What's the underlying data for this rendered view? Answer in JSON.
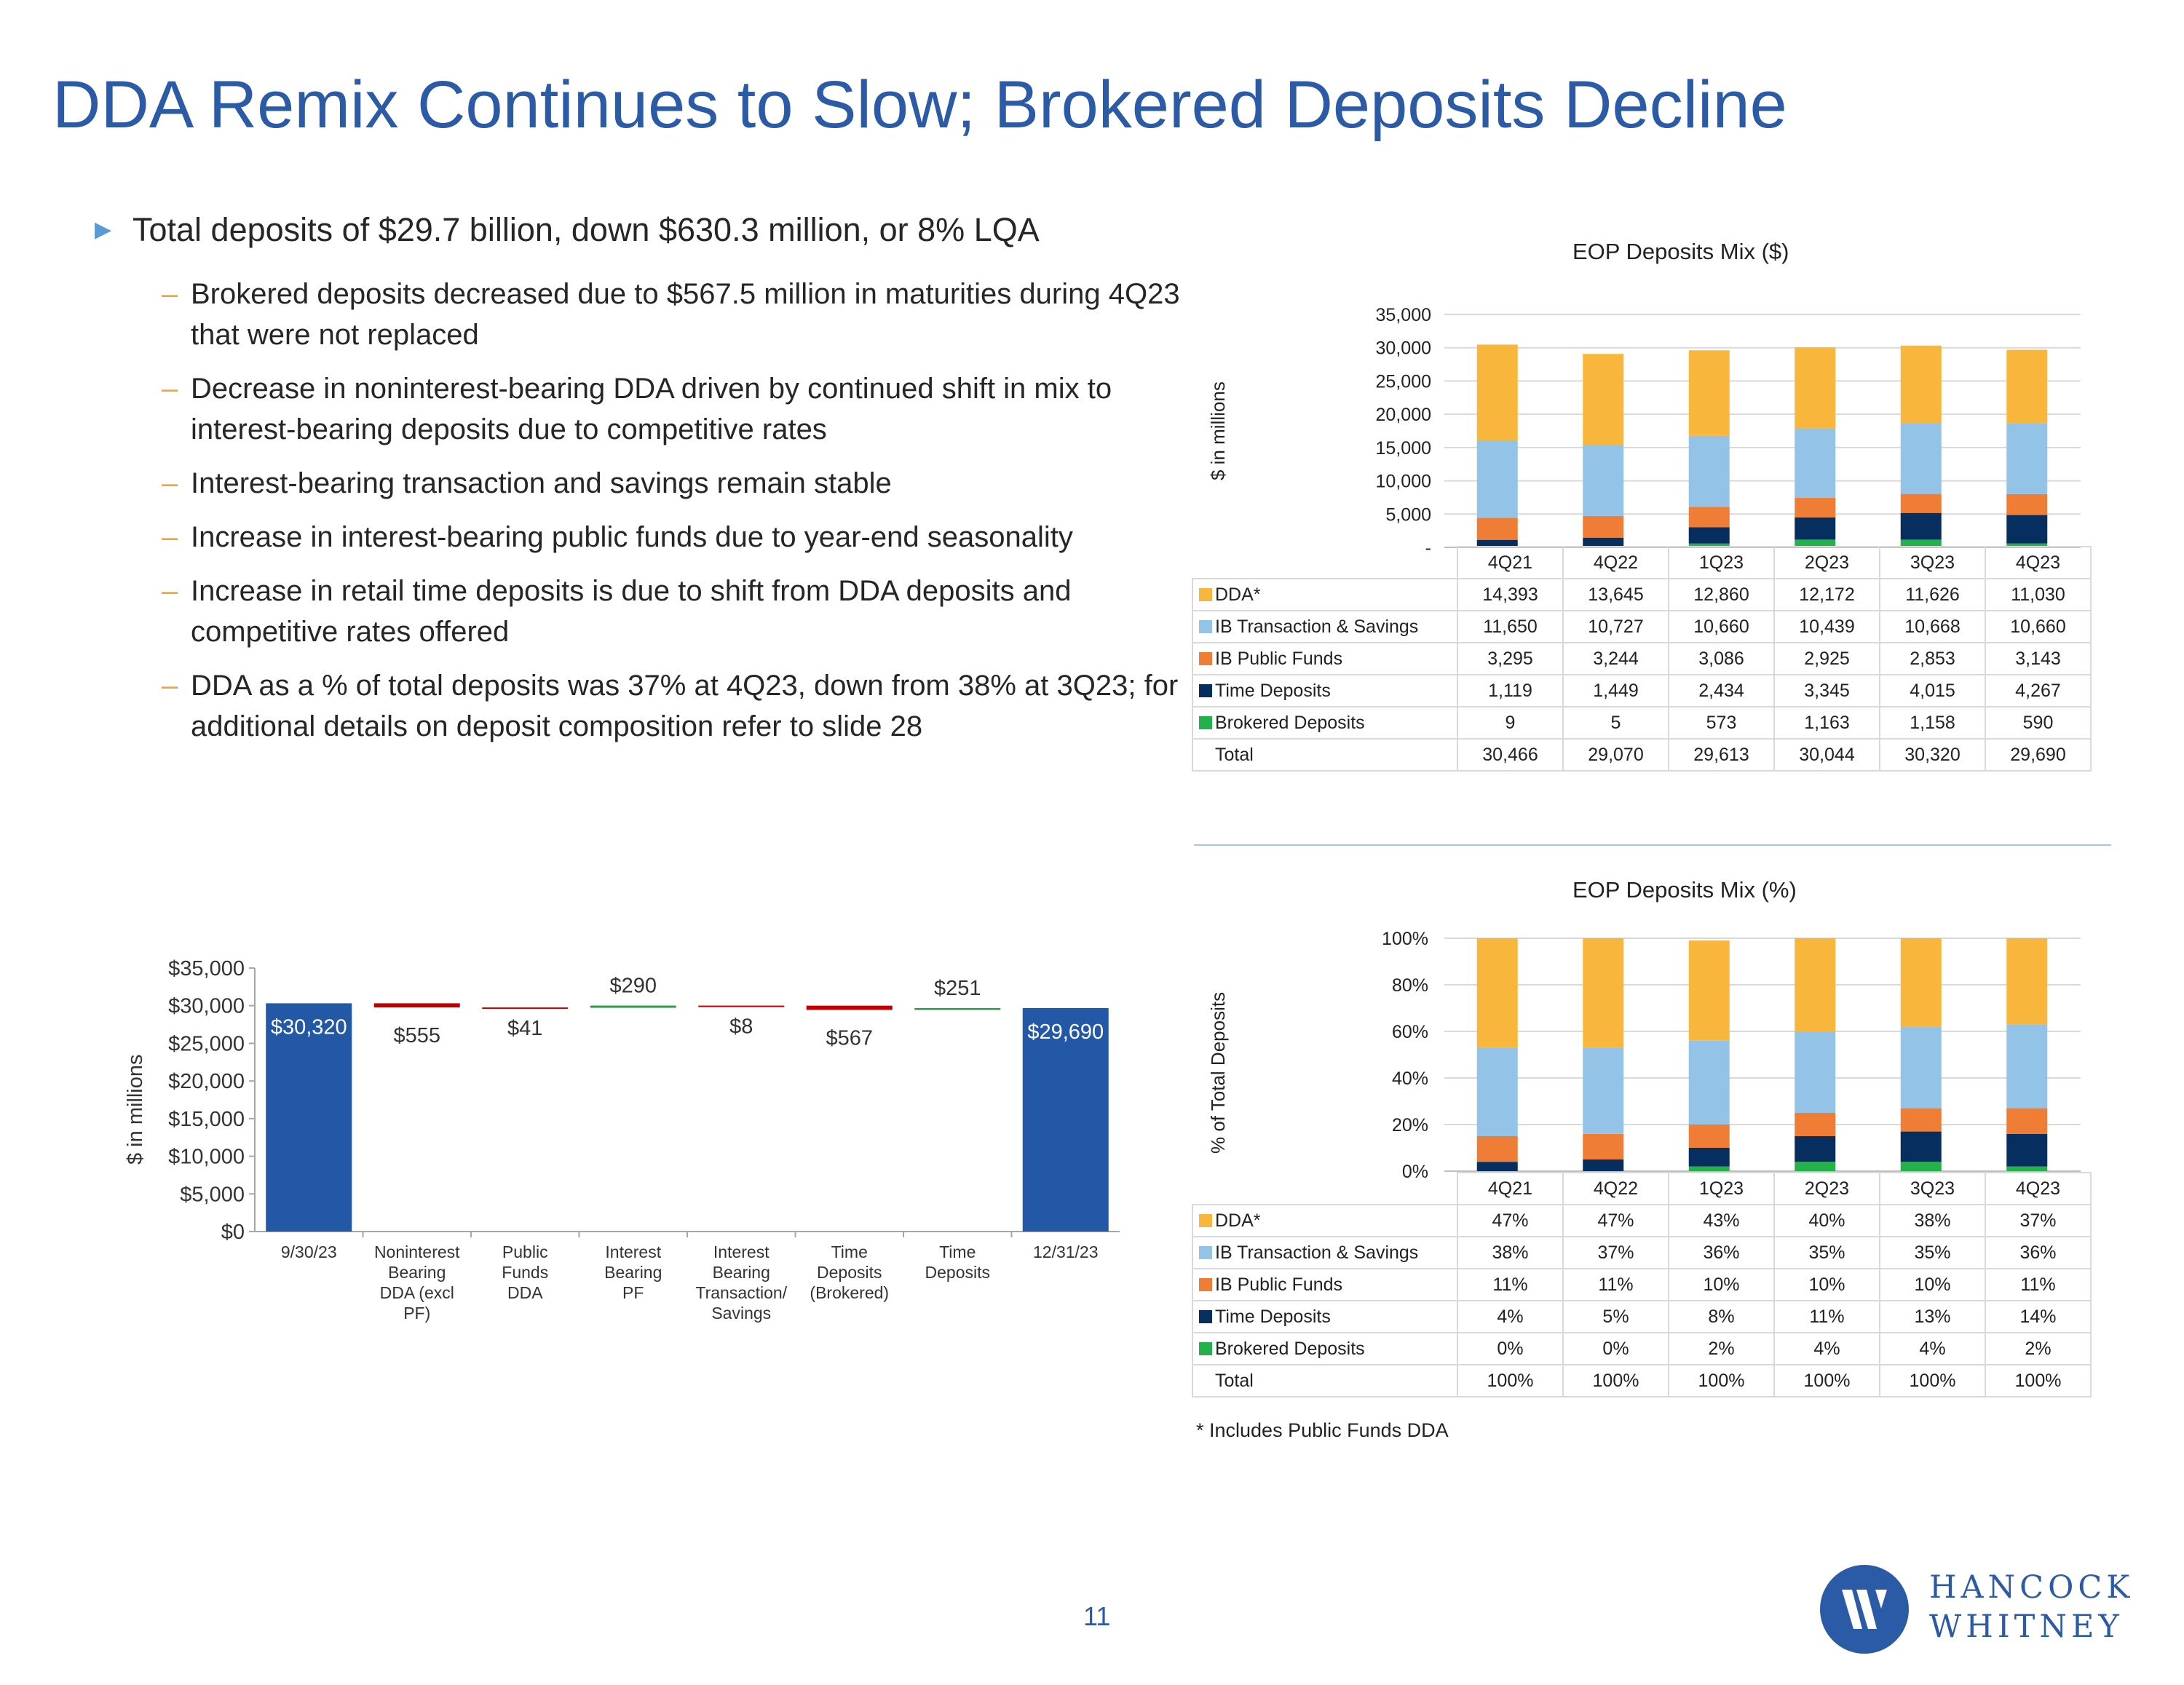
{
  "title": "DDA Remix Continues to Slow; Brokered Deposits Decline",
  "bullets": {
    "main": "Total deposits of $29.7 billion, down $630.3 million, or 8% LQA",
    "subs": [
      "Brokered deposits decreased due to $567.5 million in maturities during 4Q23 that were not replaced",
      "Decrease in noninterest-bearing DDA driven by continued shift in mix to interest-bearing deposits due to competitive rates",
      "Interest-bearing transaction and savings remain stable",
      "Increase in interest-bearing public funds due to year-end seasonality",
      "Increase in retail time deposits is due to shift from DDA deposits and competitive rates offered",
      "DDA as a % of total deposits was 37% at 4Q23, down from 38% at 3Q23; for additional details on deposit composition refer to slide 28"
    ]
  },
  "colors": {
    "title": "#2b5aa6",
    "DDA": "#f9b63d",
    "IB Transaction & Savings": "#93c4e7",
    "IB Public Funds": "#ef7d35",
    "Time Deposits": "#062f5f",
    "Brokered Deposits": "#24b14c",
    "waterfall_end": "#2358a6",
    "waterfall_down": "#c00000",
    "waterfall_up": "#2e9b47"
  },
  "chart_data": [
    {
      "type": "bar",
      "stacked": true,
      "title": "EOP Deposits Mix ($)",
      "ylabel": "$ in millions",
      "ylim": [
        0,
        35000
      ],
      "yticks": [
        "35,000",
        "30,000",
        "25,000",
        "20,000",
        "15,000",
        "10,000",
        "5,000",
        "-"
      ],
      "categories": [
        "4Q21",
        "4Q22",
        "1Q23",
        "2Q23",
        "3Q23",
        "4Q23"
      ],
      "series": [
        {
          "name": "DDA*",
          "values": [
            14393,
            13645,
            12860,
            12172,
            11626,
            11030
          ],
          "labels": [
            "14,393",
            "13,645",
            "12,860",
            "12,172",
            "11,626",
            "11,030"
          ]
        },
        {
          "name": "IB Transaction & Savings",
          "values": [
            11650,
            10727,
            10660,
            10439,
            10668,
            10660
          ],
          "labels": [
            "11,650",
            "10,727",
            "10,660",
            "10,439",
            "10,668",
            "10,660"
          ]
        },
        {
          "name": "IB Public Funds",
          "values": [
            3295,
            3244,
            3086,
            2925,
            2853,
            3143
          ],
          "labels": [
            "3,295",
            "3,244",
            "3,086",
            "2,925",
            "2,853",
            "3,143"
          ]
        },
        {
          "name": "Time Deposits",
          "values": [
            1119,
            1449,
            2434,
            3345,
            4015,
            4267
          ],
          "labels": [
            "1,119",
            "1,449",
            "2,434",
            "3,345",
            "4,015",
            "4,267"
          ]
        },
        {
          "name": "Brokered Deposits",
          "values": [
            9,
            5,
            573,
            1163,
            1158,
            590
          ],
          "labels": [
            "9",
            "5",
            "573",
            "1,163",
            "1,158",
            "590"
          ]
        }
      ],
      "total": {
        "name": "Total",
        "values": [
          30466,
          29070,
          29613,
          30044,
          30320,
          29690
        ],
        "labels": [
          "30,466",
          "29,070",
          "29,613",
          "30,044",
          "30,320",
          "29,690"
        ]
      }
    },
    {
      "type": "bar",
      "stacked": true,
      "title": "EOP Deposits Mix (%)",
      "ylabel": "% of Total Deposits",
      "ylim": [
        0,
        100
      ],
      "yticks": [
        "100%",
        "80%",
        "60%",
        "40%",
        "20%",
        "0%"
      ],
      "categories": [
        "4Q21",
        "4Q22",
        "1Q23",
        "2Q23",
        "3Q23",
        "4Q23"
      ],
      "series": [
        {
          "name": "DDA*",
          "values": [
            47,
            47,
            43,
            40,
            38,
            37
          ],
          "labels": [
            "47%",
            "47%",
            "43%",
            "40%",
            "38%",
            "37%"
          ]
        },
        {
          "name": "IB Transaction & Savings",
          "values": [
            38,
            37,
            36,
            35,
            35,
            36
          ],
          "labels": [
            "38%",
            "37%",
            "36%",
            "35%",
            "35%",
            "36%"
          ]
        },
        {
          "name": "IB Public Funds",
          "values": [
            11,
            11,
            10,
            10,
            10,
            11
          ],
          "labels": [
            "11%",
            "11%",
            "10%",
            "10%",
            "10%",
            "11%"
          ]
        },
        {
          "name": "Time Deposits",
          "values": [
            4,
            5,
            8,
            11,
            13,
            14
          ],
          "labels": [
            "4%",
            "5%",
            "8%",
            "11%",
            "13%",
            "14%"
          ]
        },
        {
          "name": "Brokered Deposits",
          "values": [
            0,
            0,
            2,
            4,
            4,
            2
          ],
          "labels": [
            "0%",
            "0%",
            "2%",
            "4%",
            "4%",
            "2%"
          ]
        }
      ],
      "total": {
        "name": "Total",
        "values": [
          100,
          100,
          100,
          100,
          100,
          100
        ],
        "labels": [
          "100%",
          "100%",
          "100%",
          "100%",
          "100%",
          "100%"
        ]
      }
    },
    {
      "type": "bar",
      "subtype": "waterfall",
      "title": "",
      "ylabel": "$ in millions",
      "ylim": [
        0,
        35000
      ],
      "yticks": [
        "$35,000",
        "$30,000",
        "$25,000",
        "$20,000",
        "$15,000",
        "$10,000",
        "$5,000",
        "$0"
      ],
      "categories": [
        "9/30/23",
        "Noninterest Bearing DDA (excl PF)",
        "Public Funds DDA",
        "Interest Bearing PF",
        "Interest Bearing Transaction/ Savings",
        "Time Deposits (Brokered)",
        "Time Deposits",
        "12/31/23"
      ],
      "category_lines": [
        [
          "9/30/23"
        ],
        [
          "Noninterest",
          "Bearing",
          "DDA (excl",
          "PF)"
        ],
        [
          "Public",
          "Funds",
          "DDA"
        ],
        [
          "Interest",
          "Bearing",
          "PF"
        ],
        [
          "Interest",
          "Bearing",
          "Transaction/",
          "Savings"
        ],
        [
          "Time",
          "Deposits",
          "(Brokered)"
        ],
        [
          "Time",
          "Deposits"
        ],
        [
          "12/31/23"
        ]
      ],
      "values": [
        30320,
        -555,
        -41,
        290,
        -8,
        -567,
        251,
        29690
      ],
      "kinds": [
        "total",
        "delta",
        "delta",
        "delta",
        "delta",
        "delta",
        "delta",
        "total"
      ],
      "labels": [
        "$30,320",
        "$555",
        "$41",
        "$290",
        "$8",
        "$567",
        "$251",
        "$29,690"
      ]
    }
  ],
  "footnote": "* Includes Public Funds DDA",
  "page_number": "11",
  "logo": {
    "line1": "HANCOCK",
    "line2": "WHITNEY"
  }
}
